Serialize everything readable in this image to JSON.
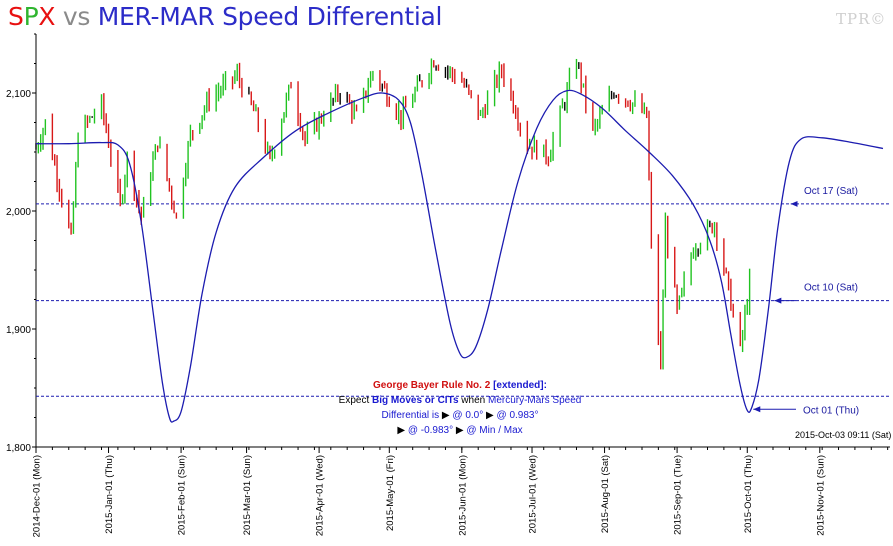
{
  "title": {
    "s_red": "S",
    "s_green": "P",
    "s_blue1": "X",
    "vs": "vs",
    "rest": "MER-MAR Speed Differential"
  },
  "watermark": "TPR©",
  "note": {
    "heading": "George Bayer Rule No. 2",
    "bracket": "[extended]:",
    "line2a": "Expect",
    "line2b": "Big Moves or CITs",
    "line2c": "when",
    "line2d": "Mercury-Mars Speed",
    "line3a": "Differential is",
    "line3b": "@ 0.0°",
    "line3c": "@ 0.983°",
    "line4a": "@ -0.983°",
    "line4b": "@ Min / Max"
  },
  "timestamp": "2015-Oct-03 09:11 (Sat)",
  "colors": {
    "up": "#21c321",
    "down": "#d81818",
    "flat": "#000000",
    "curve": "#1c1cb0",
    "hline": "#1c1cb0"
  },
  "chart_data": {
    "type": "line",
    "ylim": [
      1800,
      2150
    ],
    "yticks": [
      "1,800",
      "1,900",
      "2,000",
      "2,100"
    ],
    "ytick_values": [
      1800,
      1900,
      2000,
      2100
    ],
    "xticks": [
      "2014-Dec-01 (Mon)",
      "2015-Jan-01 (Thu)",
      "2015-Feb-01 (Sun)",
      "2015-Mar-01 (Sun)",
      "2015-Apr-01 (Wed)",
      "2015-May-01 (Fri)",
      "2015-Jun-01 (Mon)",
      "2015-Jul-01 (Wed)",
      "2015-Aug-01 (Sat)",
      "2015-Sep-01 (Tue)",
      "2015-Oct-01 (Thu)",
      "2015-Nov-01 (Sun)"
    ],
    "xtick_dates": [
      "2014-12-01",
      "2015-01-01",
      "2015-02-01",
      "2015-03-01",
      "2015-04-01",
      "2015-05-01",
      "2015-06-01",
      "2015-07-01",
      "2015-08-01",
      "2015-09-01",
      "2015-10-01",
      "2015-11-01"
    ],
    "hlines": [
      {
        "label": "Oct 17 (Sat)",
        "y": 2006,
        "arrow_date": "2015-10-17"
      },
      {
        "label": "Oct 10 (Sat)",
        "y": 1924,
        "arrow_date": "2015-10-10"
      },
      {
        "label": "Oct 01 (Thu)",
        "y": 1843,
        "arrow_date": "2015-10-01"
      }
    ],
    "series": [
      {
        "name": "SPX",
        "kind": "ohlc",
        "anchors": [
          [
            "2014-12-01",
            2053
          ],
          [
            "2014-12-05",
            2075
          ],
          [
            "2014-12-10",
            2030
          ],
          [
            "2014-12-16",
            1975
          ],
          [
            "2014-12-19",
            2065
          ],
          [
            "2014-12-29",
            2090
          ],
          [
            "2015-01-06",
            2005
          ],
          [
            "2015-01-09",
            2045
          ],
          [
            "2015-01-15",
            1995
          ],
          [
            "2015-01-22",
            2060
          ],
          [
            "2015-01-30",
            1995
          ],
          [
            "2015-02-05",
            2065
          ],
          [
            "2015-02-13",
            2095
          ],
          [
            "2015-02-25",
            2115
          ],
          [
            "2015-03-05",
            2080
          ],
          [
            "2015-03-11",
            2042
          ],
          [
            "2015-03-20",
            2108
          ],
          [
            "2015-03-26",
            2060
          ],
          [
            "2015-04-10",
            2102
          ],
          [
            "2015-04-17",
            2080
          ],
          [
            "2015-04-24",
            2118
          ],
          [
            "2015-05-06",
            2080
          ],
          [
            "2015-05-20",
            2128
          ],
          [
            "2015-06-01",
            2110
          ],
          [
            "2015-06-09",
            2080
          ],
          [
            "2015-06-18",
            2120
          ],
          [
            "2015-06-29",
            2057
          ],
          [
            "2015-07-08",
            2047
          ],
          [
            "2015-07-20",
            2128
          ],
          [
            "2015-07-27",
            2067
          ],
          [
            "2015-08-05",
            2102
          ],
          [
            "2015-08-14",
            2090
          ],
          [
            "2015-08-19",
            2080
          ],
          [
            "2015-08-21",
            1971
          ],
          [
            "2015-08-24",
            1893
          ],
          [
            "2015-08-25",
            1868
          ],
          [
            "2015-08-27",
            1988
          ],
          [
            "2015-09-01",
            1914
          ],
          [
            "2015-09-08",
            1969
          ],
          [
            "2015-09-17",
            1990
          ],
          [
            "2015-09-22",
            1943
          ],
          [
            "2015-09-28",
            1881
          ],
          [
            "2015-10-02",
            1940
          ]
        ]
      },
      {
        "name": "MER-MAR Speed Differential",
        "kind": "line",
        "points": [
          [
            "2014-12-01",
            2057
          ],
          [
            "2014-12-15",
            2057
          ],
          [
            "2014-12-29",
            2058
          ],
          [
            "2015-01-05",
            2056
          ],
          [
            "2015-01-10",
            2040
          ],
          [
            "2015-01-15",
            1990
          ],
          [
            "2015-01-20",
            1915
          ],
          [
            "2015-01-24",
            1855
          ],
          [
            "2015-01-27",
            1825
          ],
          [
            "2015-01-29",
            1822
          ],
          [
            "2015-02-01",
            1830
          ],
          [
            "2015-02-05",
            1868
          ],
          [
            "2015-02-10",
            1930
          ],
          [
            "2015-02-16",
            1982
          ],
          [
            "2015-02-24",
            2020
          ],
          [
            "2015-03-08",
            2045
          ],
          [
            "2015-03-22",
            2068
          ],
          [
            "2015-04-05",
            2083
          ],
          [
            "2015-04-20",
            2096
          ],
          [
            "2015-04-28",
            2100
          ],
          [
            "2015-05-05",
            2094
          ],
          [
            "2015-05-10",
            2075
          ],
          [
            "2015-05-15",
            2030
          ],
          [
            "2015-05-21",
            1965
          ],
          [
            "2015-05-27",
            1905
          ],
          [
            "2015-05-31",
            1880
          ],
          [
            "2015-06-03",
            1876
          ],
          [
            "2015-06-07",
            1885
          ],
          [
            "2015-06-12",
            1916
          ],
          [
            "2015-06-18",
            1968
          ],
          [
            "2015-06-25",
            2025
          ],
          [
            "2015-07-03",
            2070
          ],
          [
            "2015-07-10",
            2094
          ],
          [
            "2015-07-16",
            2102
          ],
          [
            "2015-07-22",
            2099
          ],
          [
            "2015-07-31",
            2087
          ],
          [
            "2015-08-10",
            2068
          ],
          [
            "2015-08-20",
            2050
          ],
          [
            "2015-08-30",
            2030
          ],
          [
            "2015-09-08",
            2005
          ],
          [
            "2015-09-15",
            1975
          ],
          [
            "2015-09-20",
            1940
          ],
          [
            "2015-09-24",
            1895
          ],
          [
            "2015-09-28",
            1852
          ],
          [
            "2015-10-01",
            1831
          ],
          [
            "2015-10-03",
            1834
          ],
          [
            "2015-10-06",
            1858
          ],
          [
            "2015-10-10",
            1916
          ],
          [
            "2015-10-14",
            1985
          ],
          [
            "2015-10-19",
            2042
          ],
          [
            "2015-10-24",
            2061
          ],
          [
            "2015-11-02",
            2062
          ],
          [
            "2015-11-15",
            2058
          ],
          [
            "2015-11-28",
            2053
          ]
        ]
      }
    ]
  }
}
